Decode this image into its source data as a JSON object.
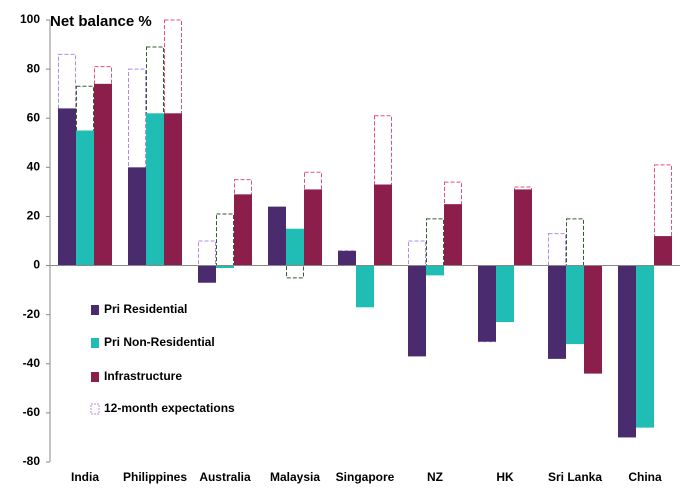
{
  "chart_data": {
    "type": "bar",
    "y_label": "Net balance %",
    "categories": [
      "India",
      "Philippines",
      "Australia",
      "Malaysia",
      "Singapore",
      "NZ",
      "HK",
      "Sri Lanka",
      "China"
    ],
    "series": [
      {
        "name": "Pri Residential",
        "color": "#4a2c6e",
        "expectation_color": "#b48be0",
        "values": [
          64,
          40,
          -7,
          24,
          6,
          -37,
          -31,
          -38,
          -70
        ],
        "expectations": [
          86,
          80,
          10,
          5,
          6,
          10,
          -31,
          13,
          -18
        ]
      },
      {
        "name": "Pri Non-Residential",
        "color": "#1fbdb3",
        "expectation_color": "#2e5e2e",
        "values": [
          55,
          62,
          -1,
          15,
          -17,
          -4,
          -23,
          -32,
          -66
        ],
        "expectations": [
          73,
          89,
          21,
          -5,
          null,
          19,
          -17,
          19,
          -6
        ]
      },
      {
        "name": "Infrastructure",
        "color": "#8b1e4a",
        "expectation_color": "#e0507a",
        "values": [
          74,
          62,
          29,
          31,
          33,
          25,
          31,
          -44,
          12
        ],
        "expectations": [
          81,
          100,
          35,
          38,
          61,
          34,
          32,
          null,
          41
        ]
      }
    ],
    "expectations_label": "12-month expectations",
    "ylim": [
      -80,
      100
    ],
    "yticks": [
      -80,
      -60,
      -40,
      -20,
      0,
      20,
      40,
      60,
      80,
      100
    ]
  }
}
